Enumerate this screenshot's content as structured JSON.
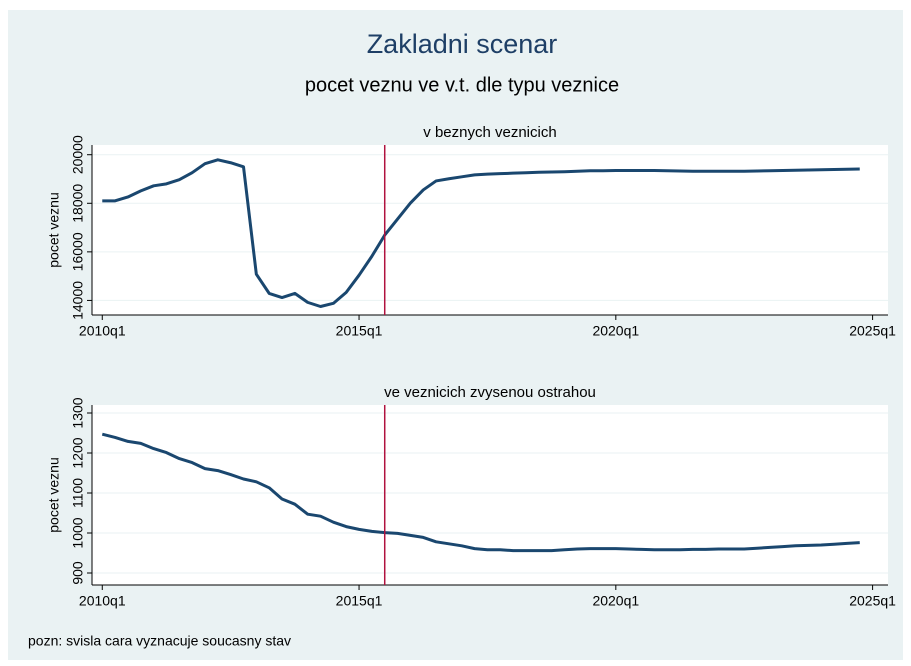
{
  "title": "Zakladni scenar",
  "subtitle": "pocet veznu ve v.t. dle typu veznice",
  "note": "pozn: svisla cara vyznacuje soucasny stav",
  "chart_data": [
    {
      "type": "line",
      "title": "v beznych veznicich",
      "ylabel": "pocet veznu",
      "x": [
        2010,
        2010.25,
        2010.5,
        2010.75,
        2011,
        2011.25,
        2011.5,
        2011.75,
        2012,
        2012.25,
        2012.5,
        2012.75,
        2013,
        2013.25,
        2013.5,
        2013.75,
        2014,
        2014.25,
        2014.5,
        2014.75,
        2015,
        2015.25,
        2015.5,
        2015.75,
        2016,
        2016.25,
        2016.5,
        2016.75,
        2017,
        2017.25,
        2017.5,
        2017.75,
        2018,
        2018.25,
        2018.5,
        2018.75,
        2019,
        2019.25,
        2019.5,
        2019.75,
        2020,
        2020.25,
        2020.5,
        2020.75,
        2021,
        2021.25,
        2021.5,
        2021.75,
        2022,
        2022.25,
        2022.5,
        2022.75,
        2023,
        2023.25,
        2023.5,
        2023.75,
        2024,
        2024.25,
        2024.5,
        2024.75
      ],
      "values": [
        18100,
        18100,
        18260,
        18510,
        18720,
        18800,
        18970,
        19260,
        19630,
        19790,
        19670,
        19500,
        15080,
        14290,
        14120,
        14290,
        13920,
        13750,
        13880,
        14330,
        15040,
        15820,
        16690,
        17350,
        18010,
        18550,
        18920,
        19010,
        19090,
        19170,
        19200,
        19220,
        19240,
        19260,
        19280,
        19290,
        19300,
        19320,
        19340,
        19340,
        19350,
        19350,
        19350,
        19350,
        19340,
        19330,
        19320,
        19320,
        19320,
        19320,
        19320,
        19330,
        19340,
        19350,
        19360,
        19370,
        19380,
        19390,
        19400,
        19410
      ],
      "color": "#1a476f",
      "xlim": [
        2009.8,
        2025.3
      ],
      "xticks": [
        {
          "value": 2010,
          "label": "2010q1"
        },
        {
          "value": 2015,
          "label": "2015q1"
        },
        {
          "value": 2020,
          "label": "2020q1"
        },
        {
          "value": 2025,
          "label": "2025q1"
        }
      ],
      "ylim": [
        13400,
        20400
      ],
      "yticks": [
        14000,
        16000,
        18000,
        20000
      ],
      "vline": 2015.5,
      "vline_color": "#b0123f",
      "grid": true
    },
    {
      "type": "line",
      "title": "ve veznicich zvysenou ostrahou",
      "ylabel": "pocet veznu",
      "x": [
        2010,
        2010.25,
        2010.5,
        2010.75,
        2011,
        2011.25,
        2011.5,
        2011.75,
        2012,
        2012.25,
        2012.5,
        2012.75,
        2013,
        2013.25,
        2013.5,
        2013.75,
        2014,
        2014.25,
        2014.5,
        2014.75,
        2015,
        2015.25,
        2015.5,
        2015.75,
        2016,
        2016.25,
        2016.5,
        2016.75,
        2017,
        2017.25,
        2017.5,
        2017.75,
        2018,
        2018.25,
        2018.5,
        2018.75,
        2019,
        2019.25,
        2019.5,
        2019.75,
        2020,
        2020.25,
        2020.5,
        2020.75,
        2021,
        2021.25,
        2021.5,
        2021.75,
        2022,
        2022.25,
        2022.5,
        2022.75,
        2023,
        2023.25,
        2023.5,
        2023.75,
        2024,
        2024.25,
        2024.5,
        2024.75
      ],
      "values": [
        1247,
        1239,
        1229,
        1224,
        1211,
        1201,
        1186,
        1176,
        1161,
        1156,
        1146,
        1135,
        1128,
        1113,
        1085,
        1072,
        1047,
        1042,
        1027,
        1016,
        1009,
        1004,
        1001,
        999,
        994,
        989,
        978,
        973,
        968,
        961,
        958,
        958,
        956,
        956,
        956,
        956,
        958,
        960,
        961,
        961,
        961,
        960,
        959,
        958,
        958,
        958,
        959,
        959,
        960,
        960,
        960,
        962,
        964,
        966,
        968,
        969,
        970,
        972,
        974,
        976
      ],
      "color": "#1a476f",
      "xlim": [
        2009.8,
        2025.3
      ],
      "xticks": [
        {
          "value": 2010,
          "label": "2010q1"
        },
        {
          "value": 2015,
          "label": "2015q1"
        },
        {
          "value": 2020,
          "label": "2020q1"
        },
        {
          "value": 2025,
          "label": "2025q1"
        }
      ],
      "ylim": [
        870,
        1320
      ],
      "yticks": [
        900,
        1000,
        1100,
        1200,
        1300
      ],
      "vline": 2015.5,
      "vline_color": "#b0123f",
      "grid": true
    }
  ]
}
